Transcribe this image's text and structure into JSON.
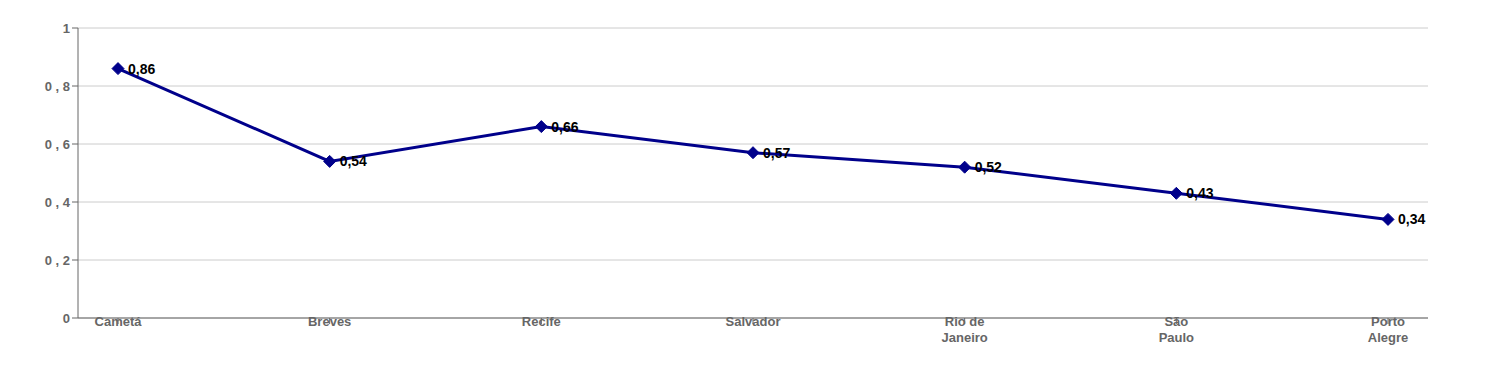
{
  "chart_data": {
    "type": "line",
    "categories": [
      "Cametá",
      "Breves",
      "Recife",
      "Salvador",
      "Rio de\nJaneiro",
      "São\nPaulo",
      "Porto\nAlegre"
    ],
    "values": [
      0.86,
      0.54,
      0.66,
      0.57,
      0.52,
      0.43,
      0.34
    ],
    "value_labels": [
      "0,86",
      "0,54",
      "0,66",
      "0,57",
      "0,52",
      "0,43",
      "0,34"
    ],
    "color": "#00008B",
    "marker": "diamond",
    "data_labels": true,
    "ylim": [
      0,
      1.0
    ],
    "yticks": [
      0,
      {
        "value": 0.2,
        "label": "0 , 2"
      },
      {
        "value": 0.4,
        "label": "0 , 4"
      },
      {
        "value": 0.6,
        "label": "0 , 6"
      },
      {
        "value": 0.8,
        "label": "0 , 8"
      },
      1.0
    ],
    "grid": true
  }
}
